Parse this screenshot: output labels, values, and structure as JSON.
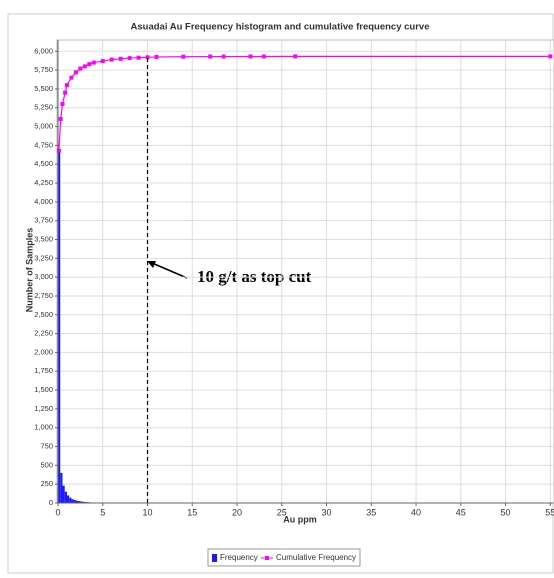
{
  "chart_data": {
    "type": "histogram",
    "title": "Asuadai Au Frequency histogram and cumulative frequency curve",
    "xlabel": "Au ppm",
    "ylabel": "Number of Samples",
    "bins": [
      0,
      0.25,
      0.5,
      0.75,
      1,
      1.25,
      1.5,
      1.75,
      2,
      2.25,
      2.5,
      2.75,
      3,
      3.25,
      3.5,
      3.75,
      4,
      4.25,
      4.5,
      4.75,
      5
    ],
    "series": [
      {
        "name": "Frequency",
        "color": "#1a1aff",
        "values": [
          4680,
          400,
          230,
          150,
          100,
          70,
          50,
          40,
          30,
          25,
          20,
          15,
          12,
          10,
          8,
          6,
          5,
          4,
          3,
          2
        ]
      },
      {
        "name": "Cumulative Frequency",
        "color": "#ff00ff",
        "x": [
          0.1,
          0.3,
          0.5,
          0.8,
          1,
          1.5,
          2,
          2.5,
          3,
          3.5,
          4,
          5,
          6,
          7,
          8,
          9,
          10,
          11,
          14,
          17,
          18.5,
          21.5,
          23,
          26.5,
          55
        ],
        "values": [
          4680,
          5100,
          5300,
          5450,
          5550,
          5650,
          5720,
          5770,
          5800,
          5830,
          5850,
          5870,
          5890,
          5900,
          5910,
          5915,
          5920,
          5925,
          5928,
          5930,
          5930,
          5931,
          5931,
          5932,
          5932
        ]
      }
    ],
    "xlim": [
      0,
      55.3
    ],
    "xticks": [
      0,
      5,
      10,
      15,
      20,
      25,
      30,
      35,
      40,
      45,
      50,
      55
    ],
    "ylim": [
      0,
      6150
    ],
    "yticks": [
      0,
      250,
      500,
      750,
      {
        "value": 1000,
        "label": "1,000"
      },
      {
        "value": 1250,
        "label": "1,250"
      },
      {
        "value": 1500,
        "label": "1,500"
      },
      {
        "value": 1750,
        "label": "1,750"
      },
      {
        "value": 2000,
        "label": "2,000"
      },
      {
        "value": 2250,
        "label": "2,250"
      },
      {
        "value": 2500,
        "label": "2,500"
      },
      {
        "value": 2750,
        "label": "2,750"
      },
      {
        "value": 3000,
        "label": "3,000"
      },
      {
        "value": 3250,
        "label": "3,250"
      },
      {
        "value": 3500,
        "label": "3,500"
      },
      {
        "value": 3750,
        "label": "3,750"
      },
      {
        "value": 4000,
        "label": "4,000"
      },
      {
        "value": 4250,
        "label": "4,250"
      },
      {
        "value": 4500,
        "label": "4,500"
      },
      {
        "value": 4750,
        "label": "4,750"
      },
      {
        "value": 5000,
        "label": "5,000"
      },
      {
        "value": 5250,
        "label": "5,250"
      },
      {
        "value": 5500,
        "label": "5,500"
      },
      {
        "value": 5750,
        "label": "5,750"
      },
      {
        "value": 6000,
        "label": "6,000"
      }
    ],
    "grid": true,
    "annotation": {
      "text": "10 g/t as top cut",
      "x": 10
    }
  }
}
